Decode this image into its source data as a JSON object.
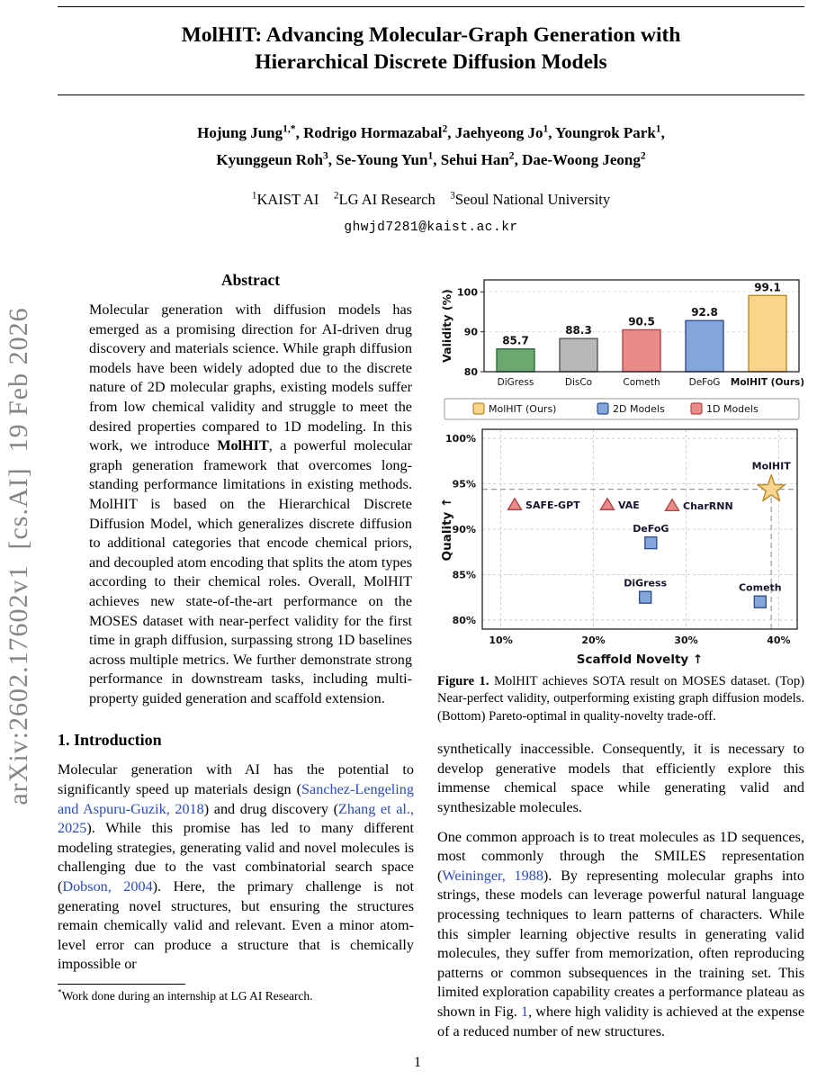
{
  "colors": {
    "link": "#2a4bbf",
    "arxiv_text": "#858585",
    "label_text": "#15152e"
  },
  "sidebar": {
    "arxiv_label": "arXiv:2602.17602v1  [cs.AI]  19 Feb 2026"
  },
  "header": {
    "title_line1": "MolHIT: Advancing Molecular-Graph Generation with",
    "title_line2": "Hierarchical Discrete Diffusion Models",
    "authors_line1": [
      {
        "t": "Hojung Jung"
      },
      {
        "t": "1,*",
        "st": "sup"
      },
      {
        "t": ", Rodrigo Hormazabal"
      },
      {
        "t": "2",
        "st": "sup"
      },
      {
        "t": ", Jaehyeong Jo"
      },
      {
        "t": "1",
        "st": "sup"
      },
      {
        "t": ", Youngrok Park"
      },
      {
        "t": "1",
        "st": "sup"
      },
      {
        "t": ","
      }
    ],
    "authors_line2": [
      {
        "t": "Kyunggeun Roh"
      },
      {
        "t": "3",
        "st": "sup"
      },
      {
        "t": ", Se-Young Yun"
      },
      {
        "t": "1",
        "st": "sup"
      },
      {
        "t": ", Sehui Han"
      },
      {
        "t": "2",
        "st": "sup"
      },
      {
        "t": ", Dae-Woong Jeong"
      },
      {
        "t": "2",
        "st": "sup"
      }
    ],
    "affiliations": [
      {
        "t": "1",
        "st": "sup"
      },
      {
        "t": "KAIST AI    "
      },
      {
        "t": "2",
        "st": "sup"
      },
      {
        "t": "LG AI Research    "
      },
      {
        "t": "3",
        "st": "sup"
      },
      {
        "t": "Seoul National University"
      }
    ],
    "email": "ghwjd7281@kaist.ac.kr"
  },
  "abstract": {
    "heading": "Abstract",
    "body": [
      {
        "t": "Molecular generation with diffusion models has emerged as a promising direction for AI-driven drug discovery and materials science.  While graph diffusion models have been widely adopted due to the discrete nature of 2D molecular graphs, existing models suffer from low chemical validity and struggle to meet the desired properties compared to 1D modeling. In this work, we introduce "
      },
      {
        "t": "MolHIT",
        "st": "b"
      },
      {
        "t": ", a powerful molecular graph generation framework that overcomes long-standing performance limitations in existing methods. MolHIT is based on the Hierarchical Discrete Diffusion Model, which generalizes discrete diffusion to additional categories that encode chemical priors, and decoupled atom encoding that splits the atom types according to their chemical roles.  Overall, MolHIT achieves new state-of-the-art performance on the MOSES dataset with near-perfect validity for the first time in graph diffusion, surpassing strong 1D baselines across multiple metrics. We further demonstrate strong performance in downstream tasks, including multi-property guided generation and scaffold extension."
      }
    ]
  },
  "introduction": {
    "heading": "1. Introduction",
    "para1": [
      {
        "t": "Molecular generation with AI has the potential to significantly speed up materials design ("
      },
      {
        "t": "Sanchez-Lengeling and Aspuru-Guzik, 2018",
        "st": "cite"
      },
      {
        "t": ") and drug discovery ("
      },
      {
        "t": "Zhang et al., 2025",
        "st": "cite"
      },
      {
        "t": "). While this promise has led to many different modeling strategies, generating valid and novel molecules is challenging due to the vast combinatorial search space ("
      },
      {
        "t": "Dobson, 2004",
        "st": "cite"
      },
      {
        "t": "). Here, the primary challenge is not generating novel structures, but ensuring the structures remain chemically valid and relevant.  Even a minor atom-level error can produce a structure that is chemically impossible or"
      }
    ]
  },
  "footnote": [
    {
      "t": "*",
      "st": "sup"
    },
    {
      "t": "Work done during an internship at LG AI Research."
    }
  ],
  "figure": {
    "caption": [
      {
        "t": "Figure 1.",
        "st": "b"
      },
      {
        "t": "  MolHIT achieves SOTA result on MOSES dataset. (Top) Near-perfect validity, outperforming existing graph diffusion models. (Bottom) Pareto-optimal in quality-novelty trade-off."
      }
    ]
  },
  "right_column": {
    "para1": [
      {
        "t": "synthetically inaccessible.  Consequently, it is necessary to develop generative models that efficiently explore this immense chemical space while generating valid and synthesizable molecules."
      }
    ],
    "para2": [
      {
        "t": "One common approach is to treat molecules as 1D sequences, most commonly through the SMILES representation ("
      },
      {
        "t": "Weininger, 1988",
        "st": "cite"
      },
      {
        "t": "). By representing molecular graphs into strings, these models can leverage powerful natural language processing techniques to learn patterns of characters. While this simpler learning objective results in generating valid molecules, they suffer from memorization, often reproducing patterns or common subsequences in the training set. This limited exploration capability creates a performance plateau as shown in Fig. "
      },
      {
        "t": "1",
        "st": "cite"
      },
      {
        "t": ", where high validity is achieved at the expense of a reduced number of new structures."
      }
    ]
  },
  "page_number": "1",
  "chart_data": [
    {
      "type": "bar",
      "ylabel": "Validity (%)",
      "categories": [
        "DiGress",
        "DisCo",
        "Cometh",
        "DeFoG",
        "MolHIT (Ours)"
      ],
      "values": [
        85.7,
        88.3,
        90.5,
        92.8,
        99.1
      ],
      "bar_colors": [
        "#6aa870",
        "#b8b8b8",
        "#e98b8b",
        "#84a5da",
        "#f9d58b"
      ],
      "bar_edge_colors": [
        "#2f6e3c",
        "#555555",
        "#b04848",
        "#2f4f8f",
        "#b98a2e"
      ],
      "ylim": [
        80,
        103
      ],
      "yticks": [
        80,
        90,
        100
      ],
      "highlight_last_category": true,
      "grid": true
    },
    {
      "type": "scatter",
      "xlabel": "Scaffold Novelty ↑",
      "ylabel": "Quality ↑",
      "xlim": [
        8,
        42
      ],
      "ylim": [
        79,
        101
      ],
      "xticks": [
        10,
        20,
        30,
        40
      ],
      "yticks": [
        80,
        85,
        90,
        95,
        100
      ],
      "tick_suffix": "%",
      "grid": true,
      "legend_position": "top",
      "legend": [
        {
          "label": "MolHIT (Ours)",
          "fill": "#f9d58b",
          "stroke": "#b98a2e"
        },
        {
          "label": "2D Models",
          "fill": "#84a5da",
          "stroke": "#2f4f8f"
        },
        {
          "label": "1D Models",
          "fill": "#e98b8b",
          "stroke": "#b04848"
        }
      ],
      "points": [
        {
          "label": "SAFE-GPT",
          "x": 11.5,
          "y": 92.7,
          "series": "1D Models",
          "marker": "triangle",
          "label_pos": "right"
        },
        {
          "label": "VAE",
          "x": 21.5,
          "y": 92.7,
          "series": "1D Models",
          "marker": "triangle",
          "label_pos": "right"
        },
        {
          "label": "CharRNN",
          "x": 28.5,
          "y": 92.6,
          "series": "1D Models",
          "marker": "triangle",
          "label_pos": "right"
        },
        {
          "label": "DeFoG",
          "x": 26.2,
          "y": 88.5,
          "series": "2D Models",
          "marker": "square",
          "label_pos": "above"
        },
        {
          "label": "DiGress",
          "x": 25.6,
          "y": 82.5,
          "series": "2D Models",
          "marker": "square",
          "label_pos": "above"
        },
        {
          "label": "Cometh",
          "x": 38.0,
          "y": 82.0,
          "series": "2D Models",
          "marker": "square",
          "label_pos": "above"
        },
        {
          "label": "MolHIT",
          "x": 39.2,
          "y": 94.4,
          "series": "MolHIT (Ours)",
          "marker": "star",
          "label_pos": "above"
        }
      ],
      "crosshair": {
        "x": 39.2,
        "y": 94.4
      }
    }
  ]
}
